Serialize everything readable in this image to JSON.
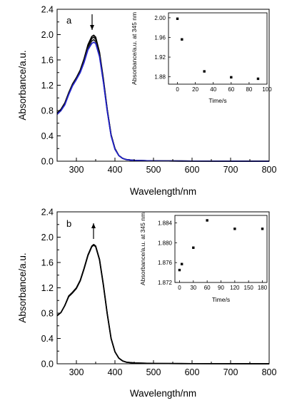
{
  "chart_data": [
    {
      "type": "line",
      "panel_label": "a",
      "xlabel": "Wavelength/nm",
      "ylabel": "Absorbance/a.u.",
      "xlim": [
        250,
        800
      ],
      "ylim": [
        0.0,
        2.4
      ],
      "x_ticks": [
        "300",
        "400",
        "500",
        "600",
        "700",
        "800"
      ],
      "y_ticks": [
        "0.0",
        "0.4",
        "0.8",
        "1.2",
        "1.6",
        "2.0",
        "2.4"
      ],
      "arrow": "down",
      "series": [
        {
          "color": "#000000",
          "peak": 1.99,
          "x": [
            250,
            260,
            270,
            280,
            290,
            300,
            310,
            320,
            330,
            340,
            345,
            350,
            360,
            370,
            380,
            390,
            400,
            410,
            420,
            430,
            450,
            500,
            600,
            700,
            800
          ],
          "y": [
            0.76,
            0.82,
            0.92,
            1.08,
            1.22,
            1.32,
            1.44,
            1.62,
            1.84,
            1.97,
            1.99,
            1.96,
            1.72,
            1.3,
            0.82,
            0.42,
            0.2,
            0.09,
            0.045,
            0.025,
            0.013,
            0.005,
            0.002,
            0.001,
            0.0
          ]
        },
        {
          "color": "#000000",
          "peak": 1.96,
          "x": [
            250,
            260,
            270,
            280,
            290,
            300,
            310,
            320,
            330,
            340,
            345,
            350,
            360,
            370,
            380,
            390,
            400,
            410,
            420,
            430,
            450,
            500,
            600,
            700,
            800
          ],
          "y": [
            0.75,
            0.81,
            0.91,
            1.07,
            1.21,
            1.31,
            1.42,
            1.6,
            1.82,
            1.94,
            1.96,
            1.93,
            1.7,
            1.28,
            0.81,
            0.41,
            0.2,
            0.09,
            0.045,
            0.025,
            0.013,
            0.005,
            0.002,
            0.001,
            0.0
          ]
        },
        {
          "color": "#222222",
          "peak": 1.92,
          "x": [
            250,
            260,
            270,
            280,
            290,
            300,
            310,
            320,
            330,
            340,
            345,
            350,
            360,
            370,
            380,
            390,
            400,
            410,
            420,
            430,
            450,
            500,
            600,
            700,
            800
          ],
          "y": [
            0.74,
            0.8,
            0.9,
            1.06,
            1.2,
            1.3,
            1.41,
            1.58,
            1.79,
            1.9,
            1.92,
            1.89,
            1.67,
            1.26,
            0.8,
            0.41,
            0.19,
            0.09,
            0.044,
            0.024,
            0.013,
            0.005,
            0.002,
            0.001,
            0.0
          ]
        },
        {
          "color": "#2222cc",
          "peak": 1.88,
          "x": [
            250,
            260,
            270,
            280,
            290,
            300,
            310,
            320,
            330,
            340,
            345,
            350,
            360,
            370,
            380,
            390,
            400,
            410,
            420,
            430,
            450,
            500,
            600,
            700,
            800
          ],
          "y": [
            0.74,
            0.8,
            0.89,
            1.05,
            1.19,
            1.29,
            1.4,
            1.56,
            1.76,
            1.86,
            1.88,
            1.86,
            1.65,
            1.25,
            0.79,
            0.4,
            0.19,
            0.09,
            0.044,
            0.024,
            0.013,
            0.005,
            0.002,
            0.001,
            0.0
          ]
        }
      ],
      "inset": {
        "type": "scatter",
        "xlabel": "Time/s",
        "ylabel": "Absorbance/a.u. at 345 nm",
        "xlim": [
          -10,
          100
        ],
        "ylim": [
          1.865,
          2.01
        ],
        "x_ticks": [
          "0",
          "20",
          "40",
          "60",
          "80",
          "100"
        ],
        "y_ticks": [
          "1.88",
          "1.92",
          "1.96",
          "2.00"
        ],
        "x": [
          0,
          5,
          30,
          60,
          90
        ],
        "y": [
          1.998,
          1.956,
          1.891,
          1.879,
          1.876
        ]
      }
    },
    {
      "type": "line",
      "panel_label": "b",
      "xlabel": "Wavelength/nm",
      "ylabel": "Absorbance/a.u.",
      "xlim": [
        250,
        800
      ],
      "ylim": [
        0.0,
        2.4
      ],
      "x_ticks": [
        "300",
        "400",
        "500",
        "600",
        "700",
        "800"
      ],
      "y_ticks": [
        "0.0",
        "0.4",
        "0.8",
        "1.2",
        "1.6",
        "2.0",
        "2.4"
      ],
      "arrow": "up",
      "series": [
        {
          "color": "#000000",
          "peak": 1.874,
          "x": [
            250,
            260,
            270,
            280,
            290,
            300,
            310,
            320,
            330,
            340,
            345,
            350,
            360,
            370,
            380,
            390,
            400,
            410,
            420,
            430,
            450,
            500,
            600,
            700,
            800
          ],
          "y": [
            0.76,
            0.81,
            0.92,
            1.06,
            1.12,
            1.19,
            1.31,
            1.5,
            1.71,
            1.85,
            1.874,
            1.85,
            1.64,
            1.24,
            0.79,
            0.4,
            0.19,
            0.09,
            0.044,
            0.024,
            0.013,
            0.005,
            0.002,
            0.001,
            0.0
          ]
        },
        {
          "color": "#000000",
          "peak": 1.884,
          "x": [
            250,
            260,
            270,
            280,
            290,
            300,
            310,
            320,
            330,
            340,
            345,
            350,
            360,
            370,
            380,
            390,
            400,
            410,
            420,
            430,
            450,
            500,
            600,
            700,
            800
          ],
          "y": [
            0.76,
            0.81,
            0.92,
            1.07,
            1.13,
            1.2,
            1.32,
            1.51,
            1.72,
            1.86,
            1.884,
            1.86,
            1.65,
            1.25,
            0.79,
            0.4,
            0.19,
            0.09,
            0.044,
            0.024,
            0.013,
            0.005,
            0.002,
            0.001,
            0.0
          ]
        }
      ],
      "inset": {
        "type": "scatter",
        "xlabel": "Time/s",
        "ylabel": "Absorbance/a.u. at 345 nm",
        "xlim": [
          -10,
          190
        ],
        "ylim": [
          1.872,
          1.8855
        ],
        "x_ticks": [
          "0",
          "30",
          "60",
          "90",
          "120",
          "150",
          "180"
        ],
        "y_ticks": [
          "1.872",
          "1.876",
          "1.880",
          "1.884"
        ],
        "x": [
          0,
          5,
          30,
          60,
          120,
          180
        ],
        "y": [
          1.8745,
          1.8757,
          1.879,
          1.8845,
          1.8828,
          1.8828
        ]
      }
    }
  ]
}
